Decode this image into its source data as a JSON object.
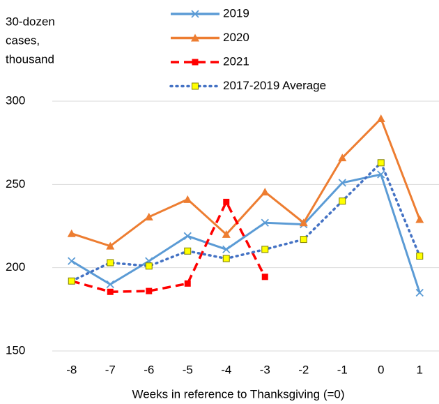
{
  "chart_data": {
    "type": "line",
    "y_label": [
      "30-dozen",
      "cases,",
      "thousand"
    ],
    "x_label": "Weeks in reference to Thanksgiving (=0)",
    "categories": [
      "-8",
      "-7",
      "-6",
      "-5",
      "-4",
      "-3",
      "-2",
      "-1",
      "0",
      "1"
    ],
    "ylim": [
      150,
      300
    ],
    "yticks": [
      150,
      200,
      250,
      300
    ],
    "grid": true,
    "series": [
      {
        "name": "2019",
        "color": "#5b9bd5",
        "marker": "x",
        "dash": "solid",
        "values": [
          204,
          190,
          204,
          219,
          211,
          227,
          226,
          251,
          256,
          185
        ]
      },
      {
        "name": "2020",
        "color": "#ed7d31",
        "marker": "triangle",
        "dash": "solid",
        "values": [
          220.5,
          213,
          230.5,
          241,
          220,
          245.5,
          227,
          266,
          289.5,
          229
        ]
      },
      {
        "name": "2021",
        "color": "#ff0000",
        "marker": "square",
        "dash": "dashed",
        "values": [
          192,
          185.5,
          186,
          190.5,
          239.5,
          194.5,
          null,
          null,
          null,
          null
        ]
      },
      {
        "name": "2017-2019 Average",
        "color": "#4472c4",
        "marker": "square",
        "marker_color": "#ffff00",
        "dash": "dotted",
        "values": [
          192,
          203,
          201,
          210,
          205.5,
          211,
          217,
          240,
          263,
          207
        ]
      }
    ]
  }
}
